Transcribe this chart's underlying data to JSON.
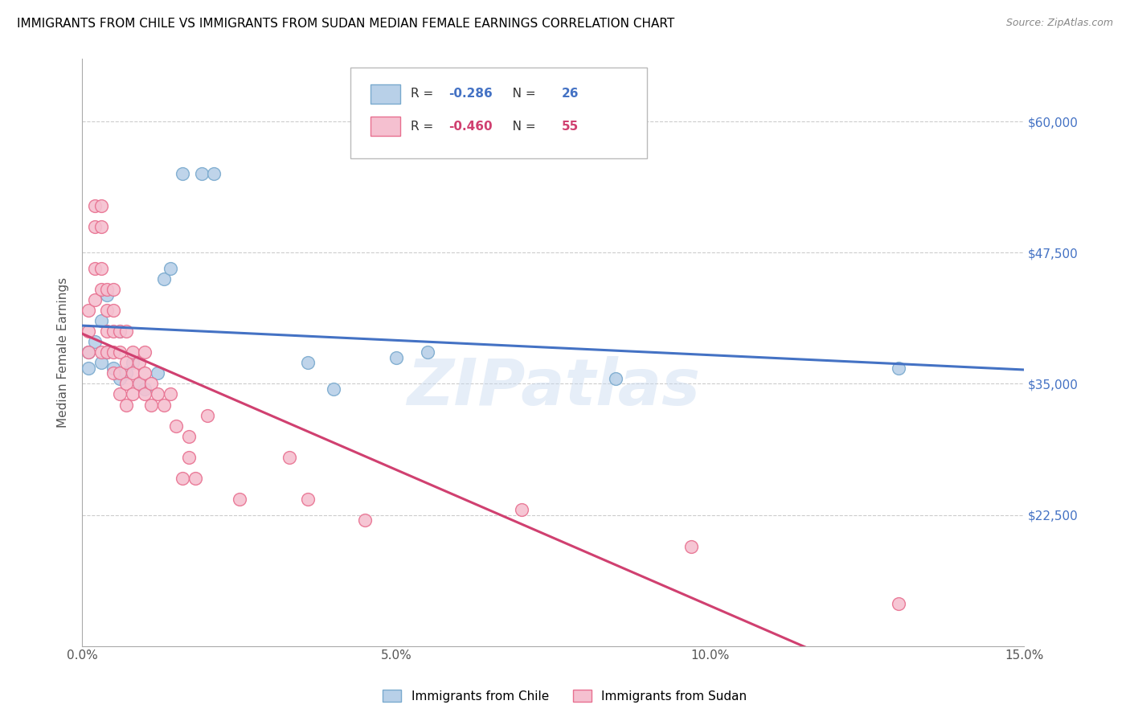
{
  "title": "IMMIGRANTS FROM CHILE VS IMMIGRANTS FROM SUDAN MEDIAN FEMALE EARNINGS CORRELATION CHART",
  "source": "Source: ZipAtlas.com",
  "ylabel": "Median Female Earnings",
  "xlabel_ticks": [
    "0.0%",
    "5.0%",
    "10.0%",
    "15.0%"
  ],
  "xlabel_tick_vals": [
    0.0,
    0.05,
    0.1,
    0.15
  ],
  "ytick_labels": [
    "$60,000",
    "$47,500",
    "$35,000",
    "$22,500"
  ],
  "ytick_vals": [
    60000,
    47500,
    35000,
    22500
  ],
  "xmin": 0.0,
  "xmax": 0.15,
  "ymin": 10000,
  "ymax": 66000,
  "chile_color": "#b8d0e8",
  "chile_edge_color": "#7aaace",
  "sudan_color": "#f5c0d0",
  "sudan_edge_color": "#e87090",
  "chile_R": "-0.286",
  "chile_N": "26",
  "sudan_R": "-0.460",
  "sudan_N": "55",
  "chile_line_color": "#4472c4",
  "sudan_line_color": "#d04070",
  "legend_label_chile": "Immigrants from Chile",
  "legend_label_sudan": "Immigrants from Sudan",
  "watermark": "ZIPatlas",
  "chile_scatter_x": [
    0.001,
    0.001,
    0.002,
    0.003,
    0.003,
    0.004,
    0.004,
    0.005,
    0.006,
    0.006,
    0.007,
    0.008,
    0.009,
    0.01,
    0.012,
    0.013,
    0.014,
    0.016,
    0.019,
    0.021,
    0.036,
    0.04,
    0.05,
    0.055,
    0.085,
    0.13
  ],
  "chile_scatter_y": [
    38000,
    36500,
    39000,
    41000,
    37000,
    43500,
    38000,
    36500,
    35500,
    40000,
    36000,
    37000,
    35000,
    34500,
    36000,
    45000,
    46000,
    55000,
    55000,
    55000,
    37000,
    34500,
    37500,
    38000,
    35500,
    36500
  ],
  "sudan_scatter_x": [
    0.001,
    0.001,
    0.001,
    0.002,
    0.002,
    0.002,
    0.002,
    0.003,
    0.003,
    0.003,
    0.003,
    0.003,
    0.004,
    0.004,
    0.004,
    0.004,
    0.005,
    0.005,
    0.005,
    0.005,
    0.005,
    0.006,
    0.006,
    0.006,
    0.006,
    0.007,
    0.007,
    0.007,
    0.007,
    0.008,
    0.008,
    0.008,
    0.009,
    0.009,
    0.01,
    0.01,
    0.01,
    0.011,
    0.011,
    0.012,
    0.013,
    0.014,
    0.015,
    0.016,
    0.017,
    0.017,
    0.018,
    0.02,
    0.025,
    0.033,
    0.036,
    0.045,
    0.07,
    0.097,
    0.13
  ],
  "sudan_scatter_y": [
    42000,
    40000,
    38000,
    52000,
    50000,
    46000,
    43000,
    52000,
    50000,
    46000,
    44000,
    38000,
    44000,
    42000,
    40000,
    38000,
    44000,
    42000,
    40000,
    38000,
    36000,
    40000,
    38000,
    36000,
    34000,
    40000,
    37000,
    35000,
    33000,
    38000,
    36000,
    34000,
    37000,
    35000,
    38000,
    36000,
    34000,
    35000,
    33000,
    34000,
    33000,
    34000,
    31000,
    26000,
    30000,
    28000,
    26000,
    32000,
    24000,
    28000,
    24000,
    22000,
    23000,
    19500,
    14000
  ]
}
